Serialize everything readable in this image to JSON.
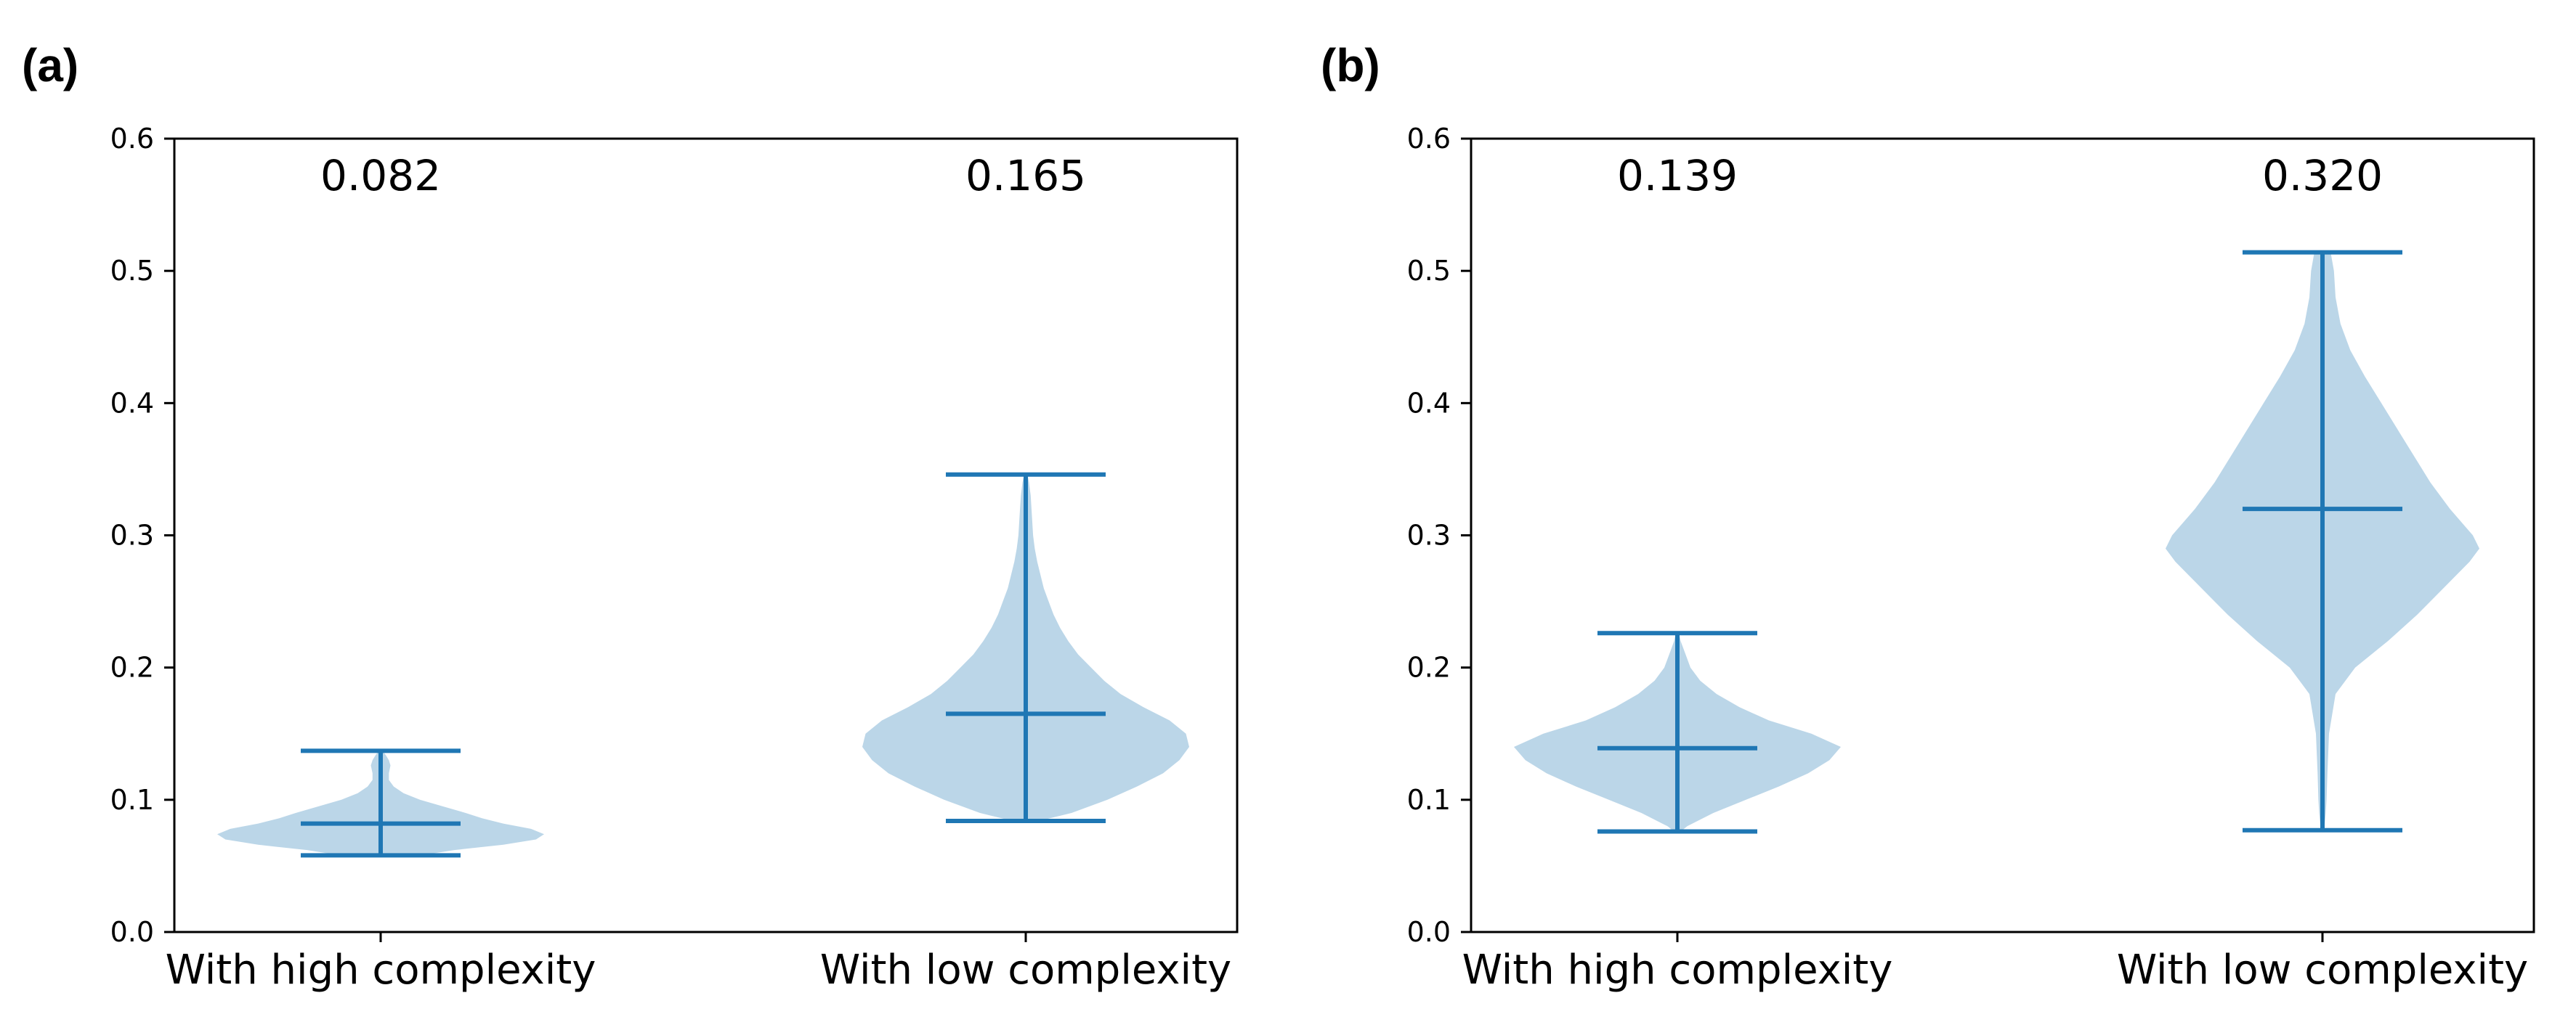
{
  "chart_data": [
    {
      "type": "violin",
      "panel_label": "(a)",
      "categories": [
        "With high complexity",
        "With low complexity"
      ],
      "ylim": [
        0,
        0.6
      ],
      "yticks": [
        "0.0",
        "0.1",
        "0.2",
        "0.3",
        "0.4",
        "0.5",
        "0.6"
      ],
      "annotations": [
        "0.082",
        "0.165"
      ],
      "stats": [
        {
          "min": 0.058,
          "mean": 0.082,
          "max": 0.137
        },
        {
          "min": 0.084,
          "mean": 0.165,
          "max": 0.346
        }
      ],
      "density": [
        [
          [
            0.058,
            0.25
          ],
          [
            0.062,
            0.45
          ],
          [
            0.066,
            0.75
          ],
          [
            0.07,
            0.95
          ],
          [
            0.074,
            1.0
          ],
          [
            0.078,
            0.92
          ],
          [
            0.082,
            0.75
          ],
          [
            0.086,
            0.62
          ],
          [
            0.09,
            0.52
          ],
          [
            0.095,
            0.38
          ],
          [
            0.1,
            0.24
          ],
          [
            0.105,
            0.14
          ],
          [
            0.11,
            0.08
          ],
          [
            0.115,
            0.05
          ],
          [
            0.12,
            0.05
          ],
          [
            0.126,
            0.06
          ],
          [
            0.13,
            0.05
          ],
          [
            0.134,
            0.03
          ],
          [
            0.137,
            0.01
          ]
        ],
        [
          [
            0.084,
            0.08
          ],
          [
            0.09,
            0.28
          ],
          [
            0.1,
            0.5
          ],
          [
            0.11,
            0.68
          ],
          [
            0.12,
            0.84
          ],
          [
            0.13,
            0.94
          ],
          [
            0.14,
            1.0
          ],
          [
            0.15,
            0.98
          ],
          [
            0.16,
            0.88
          ],
          [
            0.17,
            0.72
          ],
          [
            0.18,
            0.58
          ],
          [
            0.19,
            0.48
          ],
          [
            0.2,
            0.4
          ],
          [
            0.21,
            0.32
          ],
          [
            0.22,
            0.26
          ],
          [
            0.23,
            0.21
          ],
          [
            0.24,
            0.17
          ],
          [
            0.25,
            0.14
          ],
          [
            0.26,
            0.11
          ],
          [
            0.27,
            0.09
          ],
          [
            0.28,
            0.07
          ],
          [
            0.29,
            0.055
          ],
          [
            0.3,
            0.045
          ],
          [
            0.31,
            0.04
          ],
          [
            0.32,
            0.035
          ],
          [
            0.33,
            0.03
          ],
          [
            0.34,
            0.02
          ],
          [
            0.346,
            0.01
          ]
        ]
      ]
    },
    {
      "type": "violin",
      "panel_label": "(b)",
      "categories": [
        "With high complexity",
        "With low complexity"
      ],
      "ylim": [
        0,
        0.6
      ],
      "yticks": [
        "0.0",
        "0.1",
        "0.2",
        "0.3",
        "0.4",
        "0.5",
        "0.6"
      ],
      "annotations": [
        "0.139",
        "0.320"
      ],
      "stats": [
        {
          "min": 0.076,
          "mean": 0.139,
          "max": 0.226
        },
        {
          "min": 0.077,
          "mean": 0.32,
          "max": 0.514
        }
      ],
      "density": [
        [
          [
            0.076,
            0.02
          ],
          [
            0.08,
            0.06
          ],
          [
            0.09,
            0.22
          ],
          [
            0.1,
            0.42
          ],
          [
            0.11,
            0.62
          ],
          [
            0.12,
            0.8
          ],
          [
            0.13,
            0.93
          ],
          [
            0.14,
            1.0
          ],
          [
            0.15,
            0.82
          ],
          [
            0.16,
            0.56
          ],
          [
            0.17,
            0.38
          ],
          [
            0.18,
            0.24
          ],
          [
            0.19,
            0.14
          ],
          [
            0.2,
            0.08
          ],
          [
            0.21,
            0.05
          ],
          [
            0.22,
            0.02
          ],
          [
            0.226,
            0.01
          ]
        ],
        [
          [
            0.077,
            0.01
          ],
          [
            0.09,
            0.02
          ],
          [
            0.1,
            0.025
          ],
          [
            0.12,
            0.03
          ],
          [
            0.15,
            0.04
          ],
          [
            0.18,
            0.08
          ],
          [
            0.2,
            0.2
          ],
          [
            0.22,
            0.4
          ],
          [
            0.24,
            0.58
          ],
          [
            0.26,
            0.74
          ],
          [
            0.28,
            0.9
          ],
          [
            0.29,
            0.96
          ],
          [
            0.3,
            0.92
          ],
          [
            0.32,
            0.78
          ],
          [
            0.34,
            0.66
          ],
          [
            0.36,
            0.56
          ],
          [
            0.38,
            0.46
          ],
          [
            0.4,
            0.36
          ],
          [
            0.42,
            0.26
          ],
          [
            0.44,
            0.17
          ],
          [
            0.46,
            0.11
          ],
          [
            0.48,
            0.08
          ],
          [
            0.5,
            0.07
          ],
          [
            0.514,
            0.05
          ]
        ]
      ]
    }
  ],
  "colors": {
    "fill": "#1f77b4",
    "line": "#1f77b4"
  }
}
